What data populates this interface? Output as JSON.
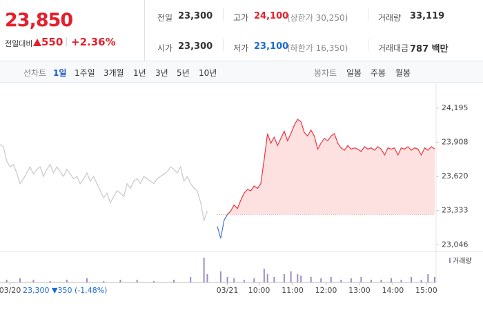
{
  "header": {
    "price": "23,850",
    "change_label": "전일대비",
    "change": "550",
    "change_rate": "+2.36%",
    "stats": [
      {
        "label": "전일",
        "value": "23,300"
      },
      {
        "label": "고가",
        "value": "24,100",
        "note": "(상한가 30,250)"
      },
      {
        "label": "거래량",
        "value": "33,119"
      },
      {
        "label": "시가",
        "value": "23,300"
      },
      {
        "label": "저가",
        "value": "23,100",
        "note": "(하한가 16,350)"
      },
      {
        "label": "거래대금",
        "value": "787 백만"
      }
    ]
  },
  "tabs": {
    "line_label": "선차트",
    "line_periods": [
      "1일",
      "1주일",
      "3개월",
      "1년",
      "3년",
      "5년",
      "10년"
    ],
    "candle_label": "봉차트",
    "candle_periods": [
      "일봉",
      "주봉",
      "월봉"
    ]
  },
  "chart_data": {
    "type": "line",
    "ylim": [
      22990,
      24350
    ],
    "yticks": [
      {
        "value": 23046,
        "label": "23,046"
      },
      {
        "value": 23333,
        "label": "23,333"
      },
      {
        "value": 23620,
        "label": "23,620"
      },
      {
        "value": 23908,
        "label": "23,908"
      },
      {
        "value": 24195,
        "label": "24,195"
      }
    ],
    "xlim": [
      0,
      130
    ],
    "xticks": [
      {
        "value": 3,
        "label": "03/20"
      },
      {
        "value": 68,
        "label": "03/21"
      },
      {
        "value": 77.5,
        "label": "10:00"
      },
      {
        "value": 87.5,
        "label": "11:00"
      },
      {
        "value": 97.5,
        "label": "12:00"
      },
      {
        "value": 107.5,
        "label": "13:00"
      },
      {
        "value": 117.5,
        "label": "14:00"
      },
      {
        "value": 127.5,
        "label": "15:00"
      }
    ],
    "annotation": "23,300 ▼350 (-1.48%)",
    "baseline": 23300,
    "series": [
      {
        "color": "#c8c8c8",
        "x": [
          0,
          1,
          2,
          3,
          4,
          5,
          6,
          7,
          8,
          9,
          10,
          11,
          12,
          13,
          14,
          15,
          16,
          17,
          18,
          19,
          20,
          21,
          22,
          23,
          24,
          25,
          26,
          27,
          28,
          29,
          30,
          31,
          32,
          33,
          34,
          35,
          36,
          37,
          38,
          39,
          40,
          41,
          42,
          43,
          44,
          45,
          46,
          47,
          48,
          49,
          50,
          51,
          52,
          53,
          54,
          55,
          56,
          57,
          58,
          59,
          60,
          61,
          62
        ],
        "values": [
          23888,
          23870,
          23750,
          23700,
          23720,
          23650,
          23560,
          23600,
          23650,
          23700,
          23640,
          23680,
          23700,
          23620,
          23680,
          23720,
          23650,
          23700,
          23660,
          23620,
          23680,
          23640,
          23600,
          23620,
          23560,
          23600,
          23650,
          23580,
          23620,
          23560,
          23500,
          23440,
          23480,
          23400,
          23450,
          23500,
          23480,
          23450,
          23560,
          23520,
          23580,
          23600,
          23560,
          23620,
          23600,
          23580,
          23560,
          23600,
          23620,
          23640,
          23660,
          23700,
          23680,
          23650,
          23700,
          23580,
          23620,
          23560,
          23520,
          23500,
          23400,
          23250,
          23330
        ]
      },
      {
        "color": "#f1303b",
        "down_color": "#3c74d6",
        "fill": "#fde1e1",
        "x": [
          65,
          66,
          67,
          68,
          69,
          70,
          71,
          72,
          73,
          74,
          75,
          76,
          77,
          78,
          79,
          80,
          81,
          82,
          83,
          84,
          85,
          86,
          87,
          88,
          89,
          90,
          91,
          92,
          93,
          94,
          95,
          96,
          97,
          98,
          99,
          100,
          101,
          102,
          103,
          104,
          105,
          106,
          107,
          108,
          109,
          110,
          111,
          112,
          113,
          114,
          115,
          116,
          117,
          118,
          119,
          120,
          121,
          122,
          123,
          124,
          125,
          126,
          127,
          128,
          129,
          130
        ],
        "values": [
          23200,
          23100,
          23250,
          23300,
          23330,
          23380,
          23350,
          23420,
          23480,
          23510,
          23500,
          23540,
          23520,
          23560,
          23760,
          23980,
          23900,
          23950,
          23880,
          23940,
          24000,
          23920,
          23980,
          24050,
          24100,
          24080,
          23990,
          23960,
          24010,
          23960,
          23850,
          23900,
          23940,
          23920,
          23960,
          23980,
          23900,
          23860,
          23840,
          23880,
          23850,
          23860,
          23850,
          23830,
          23870,
          23850,
          23860,
          23840,
          23870,
          23850,
          23800,
          23860,
          23850,
          23860,
          23800,
          23860,
          23850,
          23870,
          23840,
          23860,
          23850,
          23800,
          23860,
          23840,
          23870,
          23850
        ]
      }
    ],
    "volume": {
      "name": "거래량",
      "color": "#9b8ec4",
      "ylim": [
        0,
        10
      ],
      "x": [
        2,
        6,
        10,
        15,
        20,
        26,
        31,
        36,
        41,
        46,
        52,
        57,
        61,
        62,
        66,
        68,
        70,
        73,
        76,
        79,
        80,
        82,
        85,
        87,
        89,
        90,
        93,
        96,
        99,
        102,
        105,
        108,
        111,
        114,
        117,
        120,
        123,
        126,
        128,
        130
      ],
      "values": [
        1,
        1.5,
        1,
        0.5,
        1,
        1.5,
        0.5,
        1,
        1,
        0.5,
        1,
        2,
        9,
        3,
        4,
        2,
        1.5,
        1,
        1.5,
        5,
        3,
        2,
        3,
        4,
        3,
        2.5,
        2,
        1.5,
        2,
        1,
        1.5,
        2,
        1,
        1,
        1.5,
        1,
        2,
        1,
        3,
        2
      ]
    }
  }
}
